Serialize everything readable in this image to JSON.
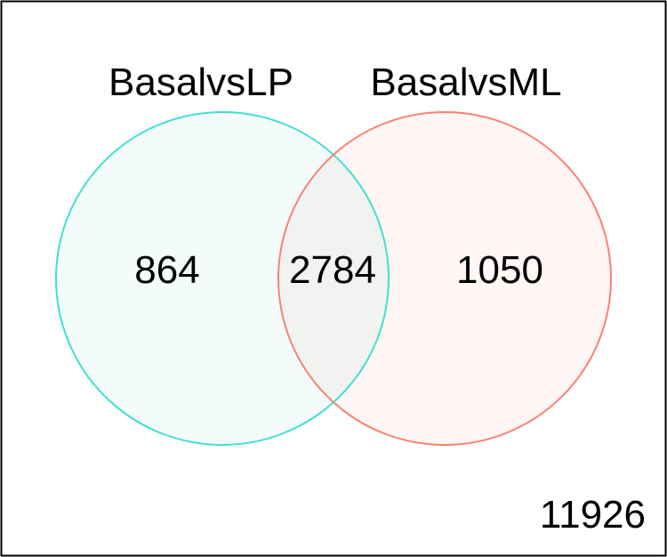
{
  "chart_data": {
    "type": "venn",
    "sets": [
      {
        "label": "BasalvsLP",
        "color": "#40e0d0",
        "only_count": "864"
      },
      {
        "label": "BasalvsML",
        "color": "#fa8072",
        "only_count": "1050"
      }
    ],
    "intersection_count": "2784",
    "outside_count": "11926"
  }
}
